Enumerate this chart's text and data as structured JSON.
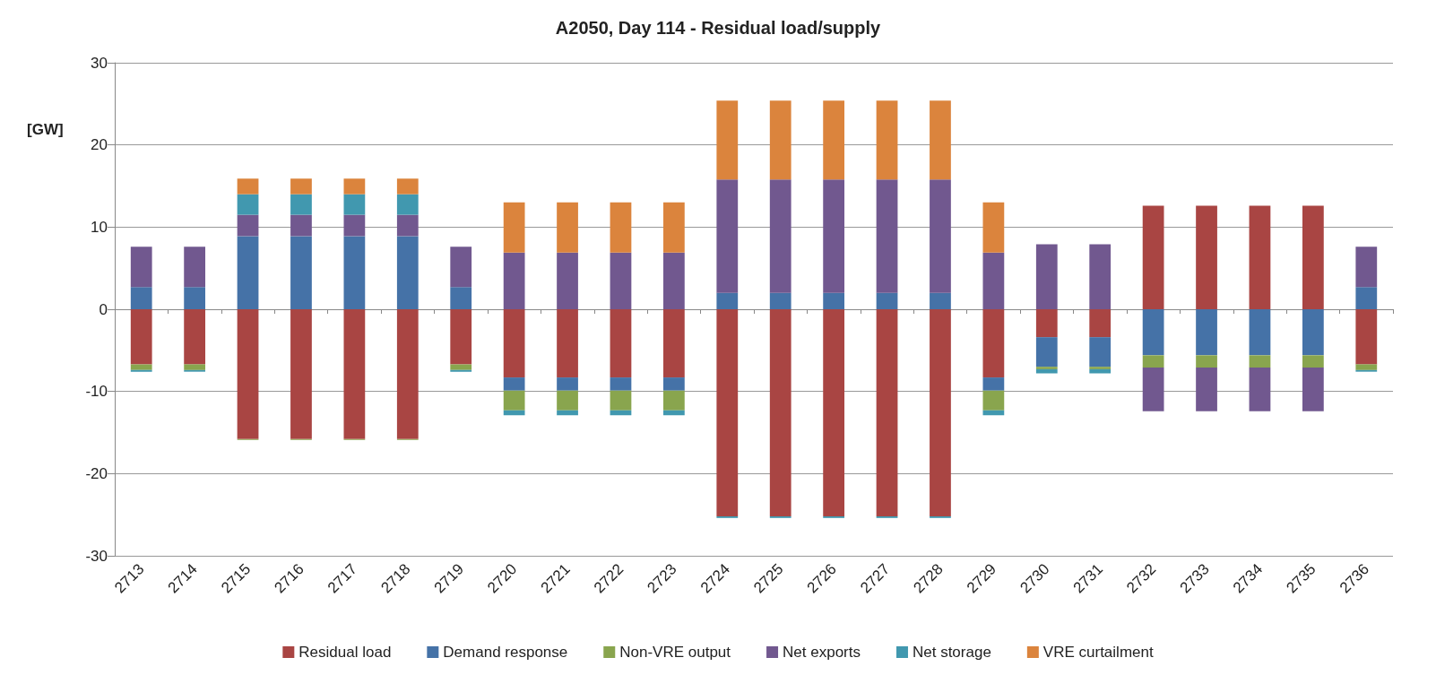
{
  "chart_data": {
    "type": "bar",
    "title": "A2050, Day 114 - Residual load/supply",
    "ylabel": "[GW]",
    "stacked": true,
    "categories": [
      "2713",
      "2714",
      "2715",
      "2716",
      "2717",
      "2718",
      "2719",
      "2720",
      "2721",
      "2722",
      "2723",
      "2724",
      "2725",
      "2726",
      "2727",
      "2728",
      "2729",
      "2730",
      "2731",
      "2732",
      "2733",
      "2734",
      "2735",
      "2736"
    ],
    "series": [
      {
        "name": "Residual load",
        "color": "#a94543",
        "values": [
          -6.7,
          -6.7,
          -15.8,
          -15.8,
          -15.8,
          -15.8,
          -6.7,
          -8.3,
          -8.3,
          -8.3,
          -8.3,
          -25.2,
          -25.2,
          -25.2,
          -25.2,
          -25.2,
          -8.3,
          -3.4,
          -3.4,
          12.6,
          12.6,
          12.6,
          12.6,
          -6.7
        ]
      },
      {
        "name": "Demand response",
        "color": "#4572a7",
        "values": [
          2.7,
          2.7,
          8.9,
          8.9,
          8.9,
          8.9,
          2.7,
          -1.6,
          -1.6,
          -1.6,
          -1.6,
          2.0,
          2.0,
          2.0,
          2.0,
          2.0,
          -1.6,
          -3.6,
          -3.6,
          -5.6,
          -5.6,
          -5.6,
          -5.6,
          2.7
        ]
      },
      {
        "name": "Non-VRE output",
        "color": "#89a54e",
        "values": [
          -0.7,
          -0.7,
          -0.1,
          -0.1,
          -0.1,
          -0.1,
          -0.7,
          -2.4,
          -2.4,
          -2.4,
          -2.4,
          null,
          null,
          null,
          null,
          null,
          -2.4,
          -0.3,
          -0.3,
          -1.5,
          -1.5,
          -1.5,
          -1.5,
          -0.7
        ]
      },
      {
        "name": "Net exports",
        "color": "#71588f",
        "values": [
          4.9,
          4.9,
          2.6,
          2.6,
          2.6,
          2.6,
          4.9,
          6.9,
          6.9,
          6.9,
          6.9,
          13.8,
          13.8,
          13.8,
          13.8,
          13.8,
          6.9,
          7.9,
          7.9,
          -5.3,
          -5.3,
          -5.3,
          -5.3,
          4.9
        ]
      },
      {
        "name": "Net storage",
        "color": "#4198af",
        "values": [
          -0.2,
          -0.2,
          2.5,
          2.5,
          2.5,
          2.5,
          -0.2,
          -0.6,
          -0.6,
          -0.6,
          -0.6,
          -0.2,
          -0.2,
          -0.2,
          -0.2,
          -0.2,
          -0.6,
          -0.5,
          -0.5,
          null,
          null,
          null,
          null,
          -0.2
        ]
      },
      {
        "name": "VRE curtailment",
        "color": "#db843d",
        "values": [
          null,
          null,
          1.9,
          1.9,
          1.9,
          1.9,
          null,
          6.1,
          6.1,
          6.1,
          6.1,
          9.6,
          9.6,
          9.6,
          9.6,
          9.6,
          6.1,
          null,
          null,
          null,
          null,
          null,
          null,
          null
        ]
      }
    ],
    "ylim": [
      -30,
      30
    ],
    "yticks": [
      -30,
      -20,
      -10,
      0,
      10,
      20,
      30
    ],
    "grid": "y",
    "legend": "bottom"
  }
}
